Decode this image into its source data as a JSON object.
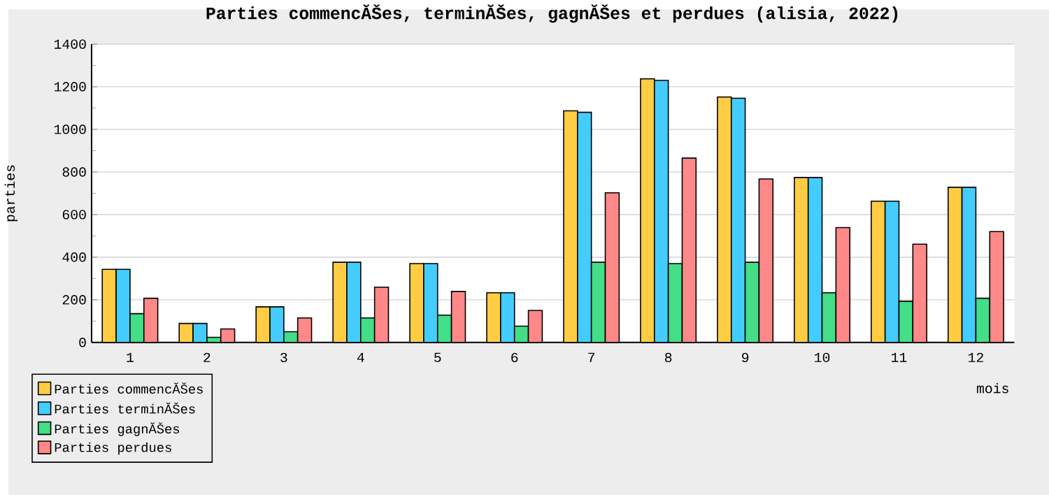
{
  "chart_data": {
    "type": "bar",
    "title": "Parties commencĂŠes, terminĂŠes, gagnĂŠes et perdues (alisia, 2022)",
    "xlabel": "mois",
    "ylabel": "parties",
    "categories": [
      "1",
      "2",
      "3",
      "4",
      "5",
      "6",
      "7",
      "8",
      "9",
      "10",
      "11",
      "12"
    ],
    "series": [
      {
        "name": "Parties commencĂŠes",
        "color": "#ffcc44",
        "values": [
          343,
          89,
          167,
          376,
          370,
          233,
          1087,
          1237,
          1152,
          774,
          663,
          728
        ]
      },
      {
        "name": "Parties terminĂŠes",
        "color": "#44ccff",
        "values": [
          343,
          89,
          167,
          376,
          370,
          233,
          1080,
          1230,
          1146,
          774,
          663,
          728
        ]
      },
      {
        "name": "Parties gagnĂŠes",
        "color": "#44dd88",
        "values": [
          135,
          24,
          50,
          115,
          128,
          76,
          376,
          370,
          376,
          233,
          193,
          207
        ]
      },
      {
        "name": "Parties perdues",
        "color": "#ff8888",
        "values": [
          207,
          63,
          115,
          259,
          239,
          150,
          702,
          865,
          767,
          539,
          461,
          520
        ]
      }
    ],
    "ylim": [
      0,
      1400
    ],
    "yticks": [
      0,
      {
        "value": 100,
        "label": null
      },
      200,
      {
        "value": 300,
        "label": null
      },
      400,
      {
        "value": 500,
        "label": null
      },
      600,
      {
        "value": 700,
        "label": null
      },
      800,
      {
        "value": 900,
        "label": null
      },
      1000,
      {
        "value": 1100,
        "label": null
      },
      1200,
      {
        "value": 1300,
        "label": null
      },
      1400
    ],
    "grid": "y",
    "legend": "bottom left"
  }
}
